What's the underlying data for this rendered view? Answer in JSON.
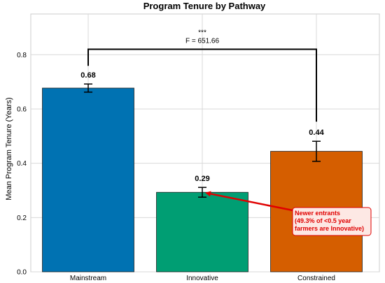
{
  "chart_data": {
    "type": "bar",
    "title": "Program Tenure by Pathway",
    "xlabel": "",
    "ylabel": "Mean Program Tenure (Years)",
    "categories": [
      "Mainstream",
      "Innovative",
      "Constrained"
    ],
    "values": [
      0.677,
      0.293,
      0.444
    ],
    "value_labels": [
      "0.68",
      "0.29",
      "0.44"
    ],
    "errors": [
      0.015,
      0.018,
      0.037
    ],
    "colors": [
      "#0072b2",
      "#009e73",
      "#d55e00"
    ],
    "ylim": [
      0,
      0.95
    ],
    "yticks": [
      0.0,
      0.2,
      0.4,
      0.6,
      0.8
    ],
    "ytick_labels": [
      "0.0",
      "0.2",
      "0.4",
      "0.6",
      "0.8"
    ],
    "grid": true,
    "significance": {
      "stars": "***",
      "stat": "F = 651.66",
      "from_category": "Mainstream",
      "to_category": "Constrained",
      "y": 0.82
    },
    "annotation": {
      "lines": [
        "Newer entrants",
        "(49.3% of <0.5 year",
        "farmers are Innovative)"
      ],
      "target_category": "Innovative",
      "target_value": 0.293,
      "color": "#e00000"
    }
  }
}
